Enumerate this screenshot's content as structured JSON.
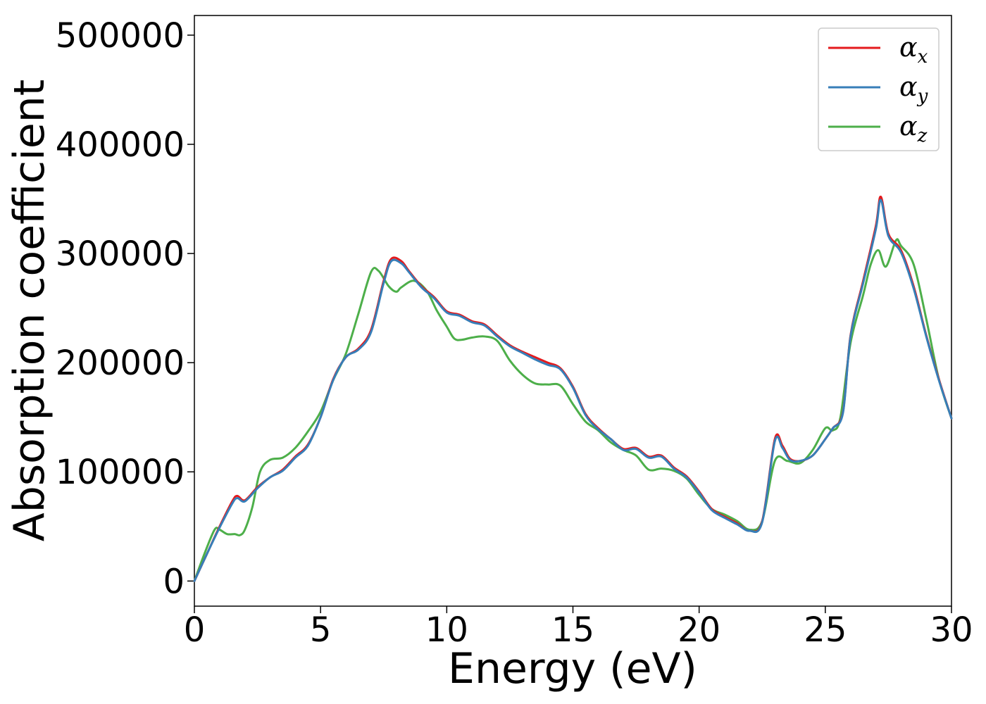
{
  "chart_data": {
    "type": "line",
    "title": "",
    "xlabel": "Energy (eV)",
    "ylabel": "Absorption coefficient",
    "xlim": [
      0,
      30
    ],
    "ylim": [
      -23000,
      518000
    ],
    "xticks": [
      0,
      5,
      10,
      15,
      20,
      25,
      30
    ],
    "xtick_labels": [
      "0",
      "5",
      "10",
      "15",
      "20",
      "25",
      "30"
    ],
    "yticks": [
      0,
      100000,
      200000,
      300000,
      400000,
      500000
    ],
    "ytick_labels": [
      "0",
      "100000",
      "200000",
      "300000",
      "400000",
      "500000"
    ],
    "grid": false,
    "legend_position": "top-right",
    "series": [
      {
        "name": "α_x",
        "legend_base": "α",
        "legend_sub": "x",
        "color": "#e41a1c",
        "x": [
          0,
          0.5,
          1.0,
          1.5,
          1.7,
          2.0,
          2.5,
          3.0,
          3.5,
          4.0,
          4.5,
          5.0,
          5.5,
          6.0,
          6.5,
          7.0,
          7.5,
          7.8,
          8.2,
          8.5,
          9.0,
          9.5,
          10.0,
          10.5,
          11.0,
          11.5,
          12.0,
          12.5,
          13.0,
          13.5,
          14.0,
          14.5,
          15.0,
          15.5,
          16.0,
          16.5,
          17.0,
          17.5,
          18.0,
          18.5,
          19.0,
          19.5,
          20.0,
          20.5,
          21.0,
          21.5,
          22.0,
          22.5,
          23.0,
          23.3,
          23.6,
          24.0,
          24.5,
          25.0,
          25.3,
          25.7,
          26.0,
          26.5,
          27.0,
          27.2,
          27.5,
          28.0,
          28.5,
          29.0,
          29.5,
          30.0
        ],
        "y": [
          0,
          25000,
          50000,
          73000,
          78000,
          74000,
          86000,
          95000,
          102000,
          114000,
          125000,
          150000,
          185000,
          205000,
          213000,
          230000,
          275000,
          295000,
          293000,
          284000,
          270000,
          260000,
          247000,
          244000,
          238000,
          235000,
          225000,
          216000,
          210000,
          205000,
          200000,
          195000,
          178000,
          153000,
          140000,
          130000,
          121000,
          122000,
          114000,
          115000,
          104000,
          96000,
          82000,
          66000,
          59000,
          53000,
          46000,
          55000,
          130000,
          124000,
          112000,
          110000,
          115000,
          130000,
          140000,
          155000,
          225000,
          275000,
          325000,
          352000,
          318000,
          303000,
          270000,
          225000,
          185000,
          149000
        ]
      },
      {
        "name": "α_y",
        "legend_base": "α",
        "legend_sub": "y",
        "color": "#377eb8",
        "x": [
          0,
          0.5,
          1.0,
          1.5,
          1.7,
          2.0,
          2.5,
          3.0,
          3.5,
          4.0,
          4.5,
          5.0,
          5.5,
          6.0,
          6.5,
          7.0,
          7.5,
          7.8,
          8.2,
          8.5,
          9.0,
          9.5,
          10.0,
          10.5,
          11.0,
          11.5,
          12.0,
          12.5,
          13.0,
          13.5,
          14.0,
          14.5,
          15.0,
          15.5,
          16.0,
          16.5,
          17.0,
          17.5,
          18.0,
          18.5,
          19.0,
          19.5,
          20.0,
          20.5,
          21.0,
          21.5,
          22.0,
          22.5,
          23.0,
          23.3,
          23.6,
          24.0,
          24.5,
          25.0,
          25.3,
          25.7,
          26.0,
          26.5,
          27.0,
          27.2,
          27.5,
          28.0,
          28.5,
          29.0,
          29.5,
          30.0
        ],
        "y": [
          0,
          25000,
          49000,
          71000,
          76000,
          73000,
          85000,
          95000,
          101000,
          113000,
          124000,
          150000,
          184000,
          205000,
          212000,
          228000,
          273000,
          293000,
          291000,
          283000,
          269000,
          259000,
          246000,
          243000,
          237000,
          234000,
          224000,
          215000,
          209000,
          203000,
          198000,
          194000,
          177000,
          152000,
          139000,
          130000,
          120000,
          121000,
          113000,
          114000,
          103000,
          95000,
          81000,
          65000,
          58000,
          52000,
          46000,
          54000,
          128000,
          122000,
          111000,
          110000,
          115000,
          130000,
          140000,
          154000,
          224000,
          273000,
          322000,
          349000,
          316000,
          301000,
          268000,
          224000,
          184000,
          149000
        ]
      },
      {
        "name": "α_z",
        "legend_base": "α",
        "legend_sub": "z",
        "color": "#4daf4a",
        "x": [
          0,
          0.4,
          0.8,
          1.0,
          1.3,
          1.6,
          1.8,
          2.0,
          2.3,
          2.6,
          3.0,
          3.5,
          4.0,
          4.5,
          5.0,
          5.5,
          6.0,
          6.5,
          7.0,
          7.3,
          7.7,
          8.0,
          8.2,
          8.7,
          9.2,
          9.6,
          10.0,
          10.3,
          10.6,
          11.0,
          11.5,
          12.0,
          12.5,
          13.0,
          13.5,
          14.0,
          14.5,
          15.0,
          15.5,
          16.0,
          16.5,
          17.0,
          17.5,
          18.0,
          18.5,
          19.0,
          19.5,
          20.0,
          20.5,
          21.0,
          21.5,
          22.0,
          22.5,
          23.0,
          23.5,
          24.0,
          24.5,
          25.0,
          25.3,
          25.6,
          26.0,
          26.5,
          26.8,
          27.1,
          27.4,
          27.8,
          28.0,
          28.5,
          29.0,
          29.5,
          30.0
        ],
        "y": [
          0,
          25000,
          47000,
          47000,
          43000,
          43000,
          42000,
          47000,
          68000,
          100000,
          111000,
          113000,
          122000,
          137000,
          155000,
          184000,
          208000,
          245000,
          283000,
          284000,
          270000,
          265000,
          269000,
          275000,
          266000,
          248000,
          233000,
          222000,
          221000,
          223000,
          224000,
          220000,
          202000,
          189000,
          181000,
          180000,
          179000,
          162000,
          146000,
          138000,
          127000,
          120000,
          115000,
          102000,
          103000,
          101000,
          94000,
          79000,
          66000,
          61000,
          55000,
          47000,
          55000,
          110000,
          110000,
          108000,
          120000,
          140000,
          138000,
          150000,
          218000,
          262000,
          290000,
          303000,
          288000,
          312000,
          307000,
          290000,
          240000,
          185000,
          149000
        ]
      }
    ]
  }
}
